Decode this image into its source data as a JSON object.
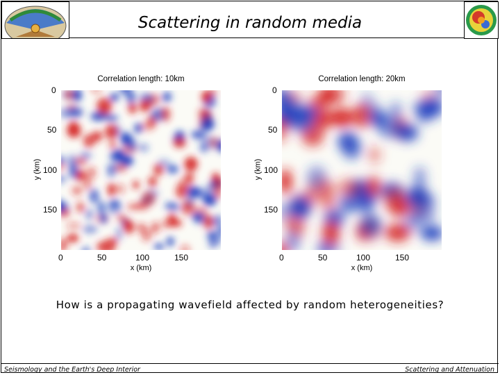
{
  "slide": {
    "title": "Scattering in random media",
    "question": "How is a propagating wavefield affected by random heterogeneities?",
    "footer_left": "Seismology and the Earth's Deep Interior",
    "footer_right": "Scattering and Attenuation"
  },
  "logos": {
    "left": "earth-cross-section-logo",
    "right": "tomography-globe-logo"
  },
  "panels": [
    {
      "title": "Correlation length: 10km",
      "xlabel": "x (km)",
      "ylabel": "y (km)",
      "xticks": [
        "0",
        "50",
        "100",
        "150"
      ],
      "yticks": [
        "0",
        "50",
        "100",
        "150"
      ],
      "xlim": [
        0,
        200
      ],
      "ylim": [
        0,
        200
      ],
      "colormap": {
        "negative": "#1f3fbf",
        "neutral": "#fbfbf6",
        "positive": "#d42020"
      }
    },
    {
      "title": "Correlation length: 20km",
      "xlabel": "x (km)",
      "ylabel": "y (km)",
      "xticks": [
        "0",
        "50",
        "100",
        "150"
      ],
      "yticks": [
        "0",
        "50",
        "100",
        "150"
      ],
      "xlim": [
        0,
        200
      ],
      "ylim": [
        0,
        200
      ],
      "colormap": {
        "negative": "#1f3fbf",
        "neutral": "#fbfbf6",
        "positive": "#d42020"
      }
    }
  ]
}
